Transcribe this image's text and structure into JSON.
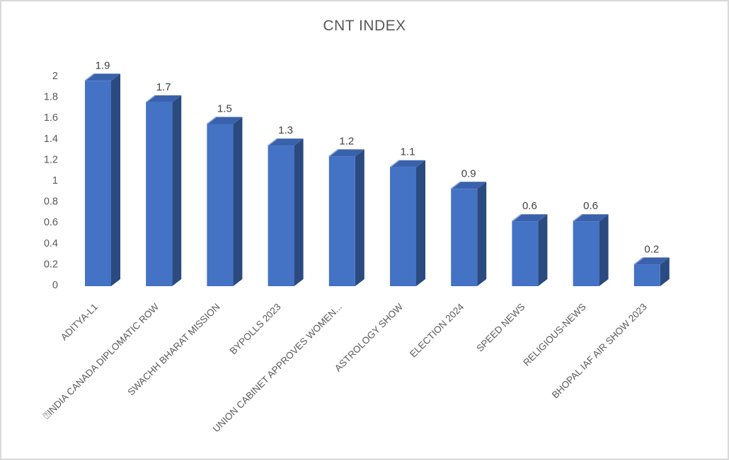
{
  "window": {
    "background": "#FFFFFF",
    "border_color": "#D9D9D9"
  },
  "chart_data": {
    "type": "bar",
    "variant": "3d-column",
    "title": "CNT INDEX",
    "categories": [
      "ADITYA-L1",
      "⍰INDIA CANADA DIPLOMATIC ROW",
      "SWACHH BHARAT MISSION",
      "BYPOLLS 2023",
      "UNION CABINET APPROVES WOMEN...",
      "ASTROLOGY SHOW",
      "ELECTION 2024",
      "SPEED NEWS",
      "RELIGIOUS-NEWS",
      "BHOPAL IAF AIR SHOW 2023"
    ],
    "values": [
      1.9,
      1.7,
      1.5,
      1.3,
      1.2,
      1.1,
      0.9,
      0.6,
      0.6,
      0.2
    ],
    "data_labels": [
      "1.9",
      "1.7",
      "1.5",
      "1.3",
      "1.2",
      "1.1",
      "0.9",
      "0.6",
      "0.6",
      "0.2"
    ],
    "y_tick_values": [
      0,
      0.2,
      0.4,
      0.6,
      0.8,
      1,
      1.2,
      1.4,
      1.6,
      1.8,
      2
    ],
    "y_tick_labels": [
      "0",
      "0.2",
      "0.4",
      "0.6",
      "0.8",
      "1",
      "1.2",
      "1.4",
      "1.6",
      "1.8",
      "2"
    ],
    "ylim": [
      0,
      2
    ],
    "xlabel": "",
    "ylabel": "",
    "grid": false,
    "legend": false,
    "colors": {
      "bar_front": "#4472C4",
      "bar_top": "#3A62AC",
      "bar_side": "#2B4A80",
      "bar_top_highlight": "#8FAADC",
      "title_text": "#595959",
      "axis_text": "#595959",
      "data_label_text": "#404040"
    }
  }
}
